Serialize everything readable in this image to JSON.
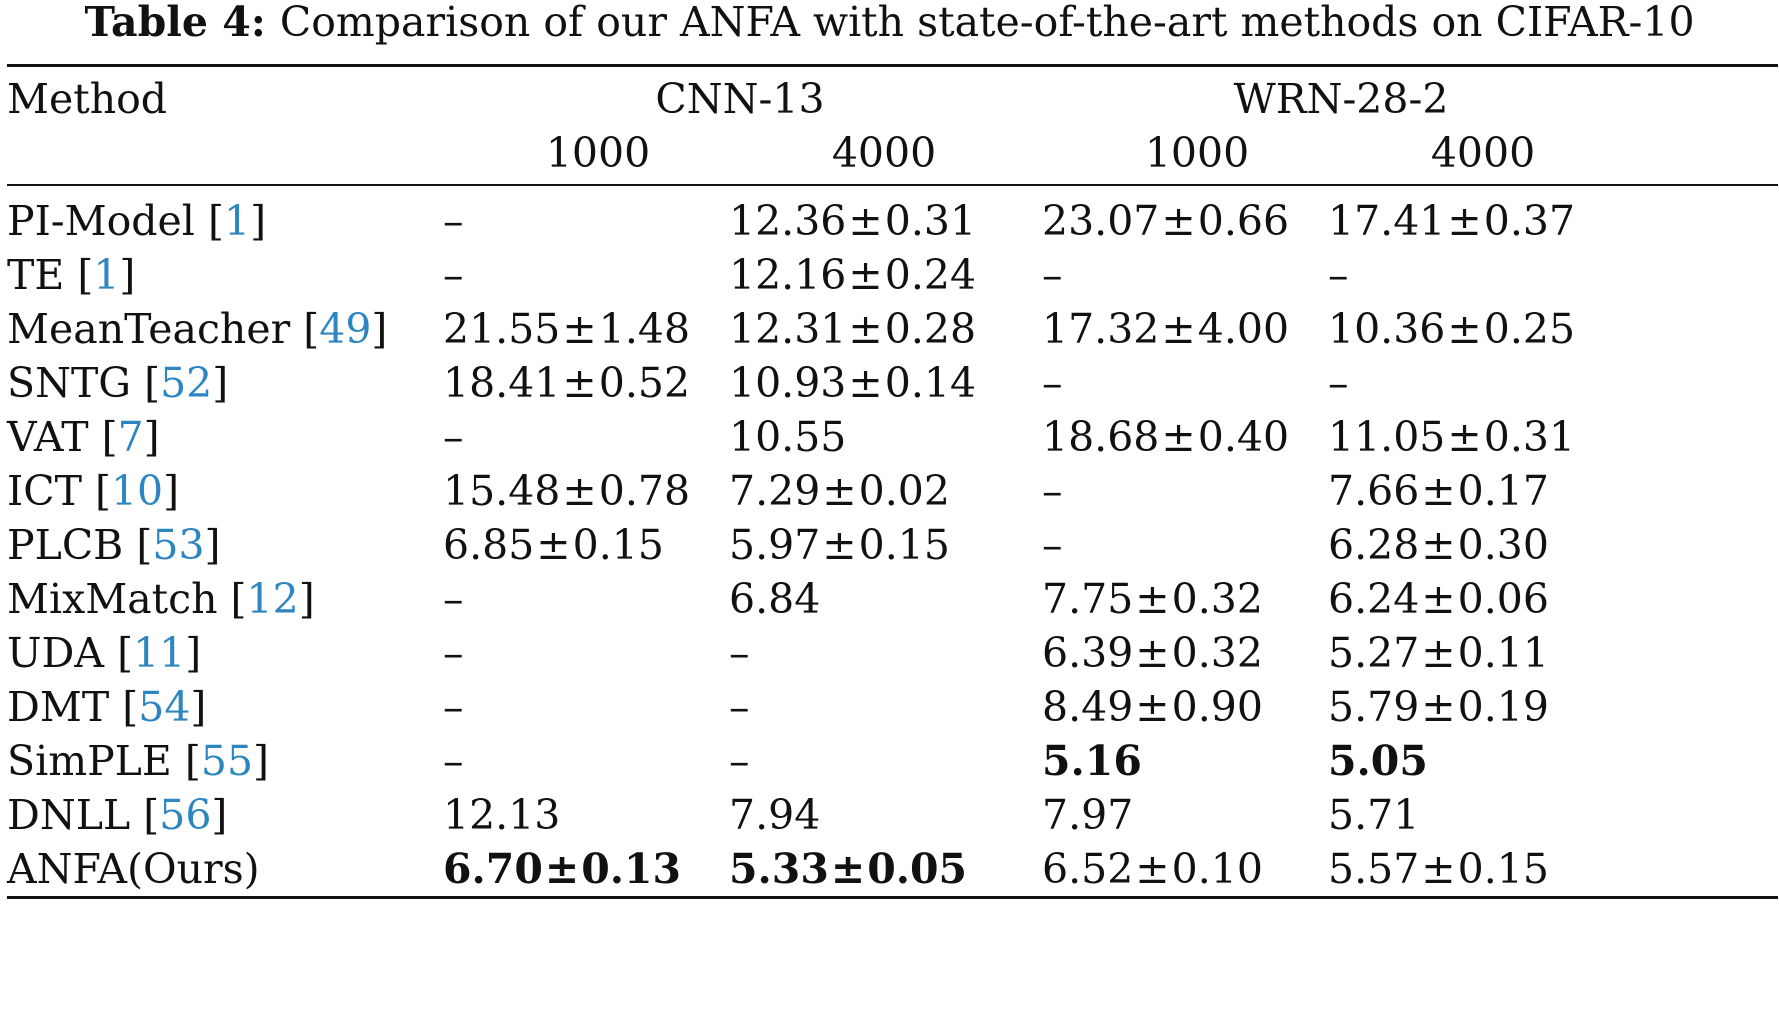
{
  "caption": {
    "label": "Table 4:",
    "text": "Comparison of our ANFA with state-of-the-art methods on CIFAR-10"
  },
  "header": {
    "method": "Method",
    "groups": [
      "CNN-13",
      "WRN-28-2"
    ],
    "subcols": [
      "1000",
      "4000",
      "1000",
      "4000"
    ]
  },
  "rows": [
    {
      "name": "PI-Model",
      "ref": "1",
      "cells": [
        {
          "v": "–"
        },
        {
          "m": "12.36",
          "s": "0.31"
        },
        {
          "m": "23.07",
          "s": "0.66"
        },
        {
          "m": "17.41",
          "s": "0.37"
        }
      ]
    },
    {
      "name": "TE",
      "ref": "1",
      "cells": [
        {
          "v": "–"
        },
        {
          "m": "12.16",
          "s": "0.24"
        },
        {
          "v": "–"
        },
        {
          "v": "–"
        }
      ]
    },
    {
      "name": "MeanTeacher",
      "ref": "49",
      "cells": [
        {
          "m": "21.55",
          "s": "1.48"
        },
        {
          "m": "12.31",
          "s": "0.28"
        },
        {
          "m": "17.32",
          "s": "4.00"
        },
        {
          "m": "10.36",
          "s": "0.25"
        }
      ]
    },
    {
      "name": "SNTG",
      "ref": "52",
      "cells": [
        {
          "m": "18.41",
          "s": "0.52"
        },
        {
          "m": "10.93",
          "s": "0.14"
        },
        {
          "v": "–"
        },
        {
          "v": "–"
        }
      ]
    },
    {
      "name": "VAT",
      "ref": "7",
      "cells": [
        {
          "v": "–"
        },
        {
          "v": "10.55"
        },
        {
          "m": "18.68",
          "s": "0.40"
        },
        {
          "m": "11.05",
          "s": "0.31"
        }
      ]
    },
    {
      "name": "ICT",
      "ref": "10",
      "cells": [
        {
          "m": "15.48",
          "s": "0.78"
        },
        {
          "m": "7.29",
          "s": "0.02"
        },
        {
          "v": "–"
        },
        {
          "m": "7.66",
          "s": "0.17"
        }
      ]
    },
    {
      "name": "PLCB",
      "ref": "53",
      "cells": [
        {
          "m": "6.85",
          "s": "0.15"
        },
        {
          "m": "5.97",
          "s": "0.15"
        },
        {
          "v": "–"
        },
        {
          "m": "6.28",
          "s": "0.30"
        }
      ]
    },
    {
      "name": "MixMatch",
      "ref": "12",
      "cells": [
        {
          "v": "–"
        },
        {
          "v": "6.84"
        },
        {
          "m": "7.75",
          "s": "0.32"
        },
        {
          "m": "6.24",
          "s": "0.06"
        }
      ]
    },
    {
      "name": "UDA",
      "ref": "11",
      "cells": [
        {
          "v": "–"
        },
        {
          "v": "–"
        },
        {
          "m": "6.39",
          "s": "0.32"
        },
        {
          "m": "5.27",
          "s": "0.11"
        }
      ]
    },
    {
      "name": "DMT",
      "ref": "54",
      "cells": [
        {
          "v": "–"
        },
        {
          "v": "–"
        },
        {
          "m": "8.49",
          "s": "0.90"
        },
        {
          "m": "5.79",
          "s": "0.19"
        }
      ]
    },
    {
      "name": "SimPLE",
      "ref": "55",
      "cells": [
        {
          "v": "–"
        },
        {
          "v": "–"
        },
        {
          "v": "5.16",
          "b": true
        },
        {
          "v": "5.05",
          "b": true
        }
      ]
    },
    {
      "name": "DNLL",
      "ref": "56",
      "cells": [
        {
          "v": "12.13"
        },
        {
          "v": "7.94"
        },
        {
          "v": "7.97"
        },
        {
          "v": "5.71"
        }
      ]
    },
    {
      "name": "ANFA(Ours)",
      "ref": "",
      "cells": [
        {
          "m": "6.70",
          "s": "0.13",
          "b": true
        },
        {
          "m": "5.33",
          "s": "0.05",
          "b": true
        },
        {
          "m": "6.52",
          "s": "0.10"
        },
        {
          "m": "5.57",
          "s": "0.15"
        }
      ]
    }
  ],
  "pm_symbol": "±"
}
